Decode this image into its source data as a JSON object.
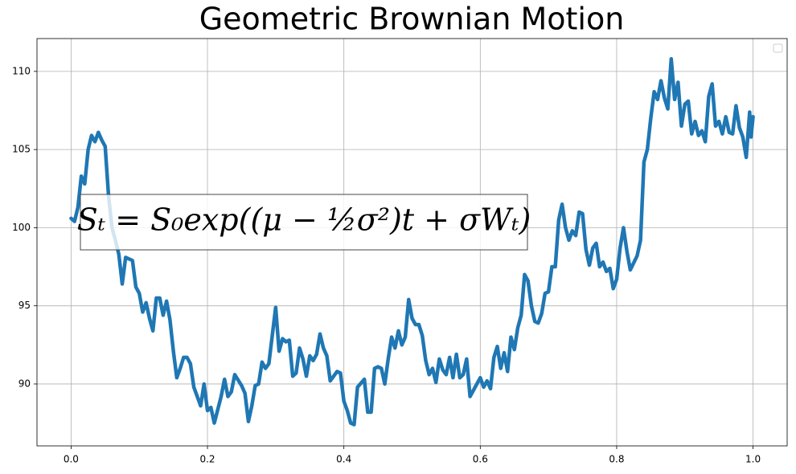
{
  "chart_data": {
    "type": "line",
    "title": "Geometric Brownian Motion",
    "annotation": "Sₜ = S₀exp((μ − ½σ²)t + σWₜ)",
    "x": [
      0.0,
      0.005,
      0.01,
      0.015,
      0.02,
      0.025,
      0.03,
      0.035,
      0.04,
      0.045,
      0.05,
      0.055,
      0.06,
      0.065,
      0.07,
      0.075,
      0.08,
      0.09,
      0.095,
      0.1,
      0.105,
      0.11,
      0.115,
      0.12,
      0.125,
      0.13,
      0.135,
      0.14,
      0.145,
      0.15,
      0.155,
      0.16,
      0.165,
      0.17,
      0.175,
      0.18,
      0.19,
      0.195,
      0.2,
      0.205,
      0.21,
      0.22,
      0.225,
      0.23,
      0.235,
      0.24,
      0.25,
      0.255,
      0.26,
      0.265,
      0.27,
      0.275,
      0.28,
      0.285,
      0.29,
      0.295,
      0.3,
      0.305,
      0.31,
      0.315,
      0.32,
      0.325,
      0.33,
      0.335,
      0.34,
      0.345,
      0.35,
      0.355,
      0.36,
      0.365,
      0.37,
      0.375,
      0.38,
      0.39,
      0.395,
      0.4,
      0.405,
      0.41,
      0.415,
      0.42,
      0.43,
      0.435,
      0.44,
      0.445,
      0.45,
      0.455,
      0.46,
      0.465,
      0.47,
      0.475,
      0.48,
      0.485,
      0.49,
      0.495,
      0.5,
      0.505,
      0.51,
      0.515,
      0.52,
      0.525,
      0.53,
      0.535,
      0.54,
      0.545,
      0.55,
      0.555,
      0.56,
      0.565,
      0.57,
      0.575,
      0.58,
      0.585,
      0.59,
      0.6,
      0.605,
      0.61,
      0.615,
      0.62,
      0.625,
      0.63,
      0.635,
      0.64,
      0.645,
      0.65,
      0.655,
      0.66,
      0.665,
      0.67,
      0.675,
      0.68,
      0.685,
      0.69,
      0.695,
      0.7,
      0.705,
      0.71,
      0.715,
      0.72,
      0.725,
      0.73,
      0.735,
      0.74,
      0.745,
      0.75,
      0.755,
      0.76,
      0.765,
      0.77,
      0.775,
      0.78,
      0.785,
      0.79,
      0.795,
      0.8,
      0.805,
      0.81,
      0.815,
      0.82,
      0.83,
      0.835,
      0.84,
      0.845,
      0.85,
      0.855,
      0.86,
      0.865,
      0.87,
      0.875,
      0.88,
      0.885,
      0.89,
      0.895,
      0.9,
      0.905,
      0.91,
      0.915,
      0.92,
      0.925,
      0.93,
      0.935,
      0.94,
      0.945,
      0.95,
      0.955,
      0.96,
      0.965,
      0.97,
      0.975,
      0.98,
      0.985,
      0.99,
      0.995,
      0.997,
      1.0
    ],
    "series": [
      {
        "color": "#1f77b4",
        "values": [
          100.6,
          100.4,
          101.3,
          103.3,
          102.8,
          105.0,
          105.9,
          105.5,
          106.1,
          105.6,
          105.2,
          102.0,
          100.0,
          99.2,
          98.3,
          96.4,
          98.1,
          97.9,
          96.2,
          95.8,
          94.6,
          95.2,
          94.2,
          93.4,
          95.5,
          95.5,
          94.4,
          95.3,
          94.1,
          92.1,
          90.4,
          91.0,
          91.7,
          91.7,
          91.3,
          89.8,
          88.6,
          90.0,
          88.3,
          88.5,
          87.5,
          89.2,
          90.3,
          89.2,
          89.5,
          90.6,
          89.9,
          89.4,
          87.6,
          88.6,
          89.9,
          90.0,
          91.4,
          91.0,
          91.3,
          93.1,
          94.9,
          92.1,
          92.9,
          92.7,
          92.8,
          90.5,
          90.7,
          92.3,
          91.6,
          90.5,
          91.8,
          91.5,
          91.9,
          93.2,
          92.3,
          91.8,
          90.2,
          90.8,
          90.7,
          88.9,
          88.3,
          87.5,
          87.4,
          89.8,
          90.3,
          88.2,
          88.2,
          91.0,
          91.1,
          91.0,
          90.0,
          91.6,
          93.0,
          92.3,
          93.4,
          92.5,
          93.0,
          95.4,
          94.2,
          93.8,
          93.8,
          93.1,
          91.5,
          90.6,
          91.0,
          90.1,
          91.6,
          90.9,
          90.6,
          91.7,
          90.4,
          91.9,
          90.4,
          90.6,
          91.6,
          89.2,
          89.6,
          90.4,
          89.8,
          90.2,
          89.7,
          91.7,
          92.4,
          91.0,
          92.0,
          90.8,
          93.0,
          92.2,
          93.6,
          94.4,
          97.0,
          96.6,
          95.0,
          94.0,
          93.9,
          94.5,
          95.8,
          95.9,
          97.5,
          97.5,
          100.5,
          101.5,
          100.0,
          99.2,
          99.8,
          99.5,
          101.0,
          100.9,
          98.6,
          97.6,
          98.7,
          99.0,
          97.5,
          97.8,
          97.2,
          97.4,
          96.1,
          96.7,
          98.7,
          100.0,
          98.5,
          97.3,
          98.2,
          99.2,
          104.2,
          105.0,
          107.0,
          108.7,
          108.2,
          109.4,
          108.3,
          107.6,
          110.8,
          108.2,
          109.3,
          106.5,
          107.9,
          108.1,
          106.0,
          106.8,
          105.9,
          106.2,
          105.5,
          108.4,
          109.2,
          106.5,
          106.8,
          106.0,
          107.1,
          106.1,
          106.0,
          107.8,
          106.4,
          105.8,
          104.5,
          107.4,
          105.8,
          107.1
        ]
      }
    ],
    "xlim": [
      -0.05,
      1.05
    ],
    "ylim": [
      86.04,
      112.1
    ],
    "xticks": [
      {
        "value": 0.0,
        "label": "0.0"
      },
      0.2,
      0.4,
      0.6,
      0.8,
      {
        "value": 1.0,
        "label": "1.0"
      }
    ],
    "yticks": [
      90,
      95,
      100,
      105,
      110
    ],
    "grid": true
  }
}
